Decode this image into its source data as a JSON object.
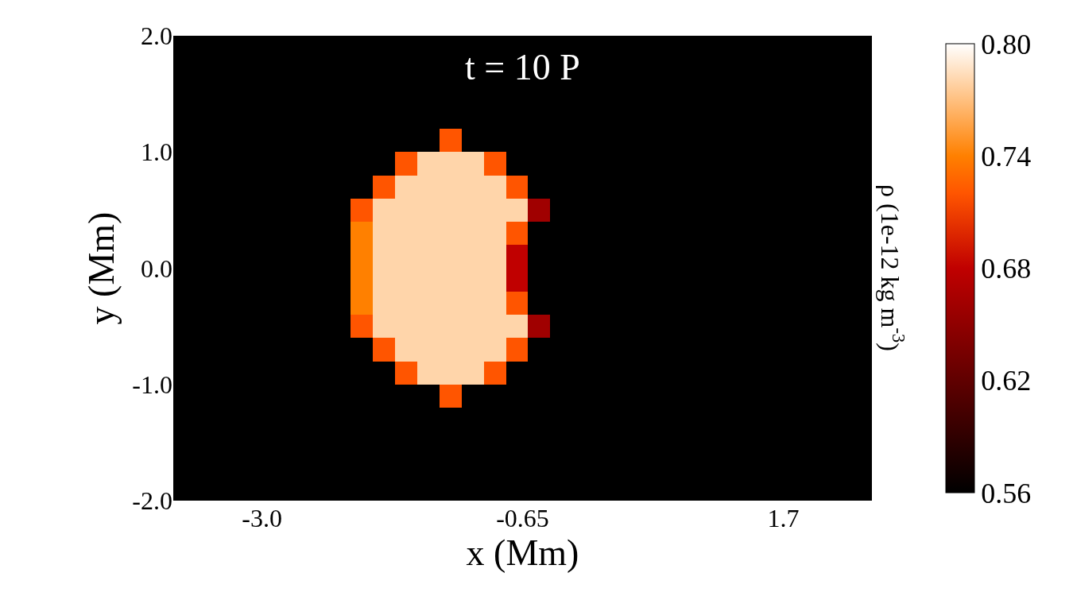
{
  "chart_data": {
    "type": "heatmap",
    "title": "t = 10 P",
    "xlabel": "x (Mm)",
    "ylabel": "y (Mm)",
    "clabel": "ρ (1e-12 kg m$^{-3}$)",
    "x": [
      -3.7,
      -3.5,
      -3.3,
      -3.1,
      -2.9,
      -2.7,
      -2.5,
      -2.3,
      -2.1,
      -1.9,
      -1.7,
      -1.5,
      -1.3,
      -1.1,
      -0.9,
      -0.7,
      -0.5,
      -0.3,
      -0.1,
      0.1,
      0.3,
      0.5,
      0.7,
      0.9,
      1.1,
      1.3,
      1.5,
      1.7,
      1.9,
      2.1,
      2.3
    ],
    "y": [
      1.9,
      1.7,
      1.5,
      1.3,
      1.1,
      0.9,
      0.7,
      0.5,
      0.3,
      0.1,
      -0.1,
      -0.3,
      -0.5,
      -0.7,
      -0.9,
      -1.1,
      -1.3,
      -1.5,
      -1.7,
      -1.9
    ],
    "cells": [
      [
        0.56,
        0.56,
        0.56,
        0.56,
        0.56,
        0.56,
        0.56,
        0.56,
        0.56,
        0.56,
        0.56,
        0.56,
        0.56,
        0.56,
        0.56,
        0.56,
        0.56,
        0.56,
        0.56,
        0.56,
        0.56,
        0.56,
        0.56,
        0.56,
        0.56,
        0.56,
        0.56,
        0.56,
        0.56,
        0.56,
        0.56
      ],
      [
        0.56,
        0.56,
        0.56,
        0.56,
        0.56,
        0.56,
        0.56,
        0.56,
        0.56,
        0.56,
        0.56,
        0.56,
        0.56,
        0.56,
        0.56,
        0.56,
        0.56,
        0.56,
        0.56,
        0.56,
        0.56,
        0.56,
        0.56,
        0.56,
        0.56,
        0.56,
        0.56,
        0.56,
        0.56,
        0.56,
        0.56
      ],
      [
        0.56,
        0.56,
        0.56,
        0.56,
        0.56,
        0.56,
        0.56,
        0.56,
        0.56,
        0.56,
        0.56,
        0.56,
        0.56,
        0.56,
        0.56,
        0.56,
        0.56,
        0.56,
        0.56,
        0.56,
        0.56,
        0.56,
        0.56,
        0.56,
        0.56,
        0.56,
        0.56,
        0.56,
        0.56,
        0.56,
        0.56
      ],
      [
        0.56,
        0.56,
        0.56,
        0.56,
        0.56,
        0.56,
        0.56,
        0.56,
        0.56,
        0.56,
        0.56,
        0.56,
        0.56,
        0.56,
        0.56,
        0.56,
        0.56,
        0.56,
        0.56,
        0.56,
        0.56,
        0.56,
        0.56,
        0.56,
        0.56,
        0.56,
        0.56,
        0.56,
        0.56,
        0.56,
        0.56
      ],
      [
        0.56,
        0.56,
        0.56,
        0.56,
        0.56,
        0.56,
        0.56,
        0.56,
        0.56,
        0.56,
        0.56,
        0.56,
        0.72,
        0.56,
        0.56,
        0.56,
        0.56,
        0.56,
        0.56,
        0.56,
        0.56,
        0.56,
        0.56,
        0.56,
        0.56,
        0.56,
        0.56,
        0.56,
        0.56,
        0.56,
        0.56
      ],
      [
        0.56,
        0.56,
        0.56,
        0.56,
        0.56,
        0.56,
        0.56,
        0.56,
        0.56,
        0.56,
        0.72,
        0.78,
        0.78,
        0.78,
        0.72,
        0.56,
        0.56,
        0.56,
        0.56,
        0.56,
        0.56,
        0.56,
        0.56,
        0.56,
        0.56,
        0.56,
        0.56,
        0.56,
        0.56,
        0.56,
        0.56
      ],
      [
        0.56,
        0.56,
        0.56,
        0.56,
        0.56,
        0.56,
        0.56,
        0.56,
        0.56,
        0.72,
        0.78,
        0.78,
        0.78,
        0.78,
        0.78,
        0.72,
        0.56,
        0.56,
        0.56,
        0.56,
        0.56,
        0.56,
        0.56,
        0.56,
        0.56,
        0.56,
        0.56,
        0.56,
        0.56,
        0.56,
        0.56
      ],
      [
        0.56,
        0.56,
        0.56,
        0.56,
        0.56,
        0.56,
        0.56,
        0.56,
        0.72,
        0.78,
        0.78,
        0.78,
        0.78,
        0.78,
        0.78,
        0.78,
        0.66,
        0.56,
        0.56,
        0.56,
        0.56,
        0.56,
        0.56,
        0.56,
        0.56,
        0.56,
        0.56,
        0.56,
        0.56,
        0.56,
        0.56
      ],
      [
        0.56,
        0.56,
        0.56,
        0.56,
        0.56,
        0.56,
        0.56,
        0.56,
        0.74,
        0.78,
        0.78,
        0.78,
        0.78,
        0.78,
        0.78,
        0.72,
        0.56,
        0.56,
        0.56,
        0.56,
        0.56,
        0.56,
        0.56,
        0.56,
        0.56,
        0.56,
        0.56,
        0.56,
        0.56,
        0.56,
        0.56
      ],
      [
        0.56,
        0.56,
        0.56,
        0.56,
        0.56,
        0.56,
        0.56,
        0.56,
        0.74,
        0.78,
        0.78,
        0.78,
        0.78,
        0.78,
        0.78,
        0.68,
        0.56,
        0.56,
        0.56,
        0.56,
        0.56,
        0.56,
        0.56,
        0.56,
        0.56,
        0.56,
        0.56,
        0.56,
        0.56,
        0.56,
        0.56
      ],
      [
        0.56,
        0.56,
        0.56,
        0.56,
        0.56,
        0.56,
        0.56,
        0.56,
        0.74,
        0.78,
        0.78,
        0.78,
        0.78,
        0.78,
        0.78,
        0.68,
        0.56,
        0.56,
        0.56,
        0.56,
        0.56,
        0.56,
        0.56,
        0.56,
        0.56,
        0.56,
        0.56,
        0.56,
        0.56,
        0.56,
        0.56
      ],
      [
        0.56,
        0.56,
        0.56,
        0.56,
        0.56,
        0.56,
        0.56,
        0.56,
        0.74,
        0.78,
        0.78,
        0.78,
        0.78,
        0.78,
        0.78,
        0.72,
        0.56,
        0.56,
        0.56,
        0.56,
        0.56,
        0.56,
        0.56,
        0.56,
        0.56,
        0.56,
        0.56,
        0.56,
        0.56,
        0.56,
        0.56
      ],
      [
        0.56,
        0.56,
        0.56,
        0.56,
        0.56,
        0.56,
        0.56,
        0.56,
        0.72,
        0.78,
        0.78,
        0.78,
        0.78,
        0.78,
        0.78,
        0.78,
        0.66,
        0.56,
        0.56,
        0.56,
        0.56,
        0.56,
        0.56,
        0.56,
        0.56,
        0.56,
        0.56,
        0.56,
        0.56,
        0.56,
        0.56
      ],
      [
        0.56,
        0.56,
        0.56,
        0.56,
        0.56,
        0.56,
        0.56,
        0.56,
        0.56,
        0.72,
        0.78,
        0.78,
        0.78,
        0.78,
        0.78,
        0.72,
        0.56,
        0.56,
        0.56,
        0.56,
        0.56,
        0.56,
        0.56,
        0.56,
        0.56,
        0.56,
        0.56,
        0.56,
        0.56,
        0.56,
        0.56
      ],
      [
        0.56,
        0.56,
        0.56,
        0.56,
        0.56,
        0.56,
        0.56,
        0.56,
        0.56,
        0.56,
        0.72,
        0.78,
        0.78,
        0.78,
        0.72,
        0.56,
        0.56,
        0.56,
        0.56,
        0.56,
        0.56,
        0.56,
        0.56,
        0.56,
        0.56,
        0.56,
        0.56,
        0.56,
        0.56,
        0.56,
        0.56
      ],
      [
        0.56,
        0.56,
        0.56,
        0.56,
        0.56,
        0.56,
        0.56,
        0.56,
        0.56,
        0.56,
        0.56,
        0.56,
        0.72,
        0.56,
        0.56,
        0.56,
        0.56,
        0.56,
        0.56,
        0.56,
        0.56,
        0.56,
        0.56,
        0.56,
        0.56,
        0.56,
        0.56,
        0.56,
        0.56,
        0.56,
        0.56
      ],
      [
        0.56,
        0.56,
        0.56,
        0.56,
        0.56,
        0.56,
        0.56,
        0.56,
        0.56,
        0.56,
        0.56,
        0.56,
        0.56,
        0.56,
        0.56,
        0.56,
        0.56,
        0.56,
        0.56,
        0.56,
        0.56,
        0.56,
        0.56,
        0.56,
        0.56,
        0.56,
        0.56,
        0.56,
        0.56,
        0.56,
        0.56
      ],
      [
        0.56,
        0.56,
        0.56,
        0.56,
        0.56,
        0.56,
        0.56,
        0.56,
        0.56,
        0.56,
        0.56,
        0.56,
        0.56,
        0.56,
        0.56,
        0.56,
        0.56,
        0.56,
        0.56,
        0.56,
        0.56,
        0.56,
        0.56,
        0.56,
        0.56,
        0.56,
        0.56,
        0.56,
        0.56,
        0.56,
        0.56
      ],
      [
        0.56,
        0.56,
        0.56,
        0.56,
        0.56,
        0.56,
        0.56,
        0.56,
        0.56,
        0.56,
        0.56,
        0.56,
        0.56,
        0.56,
        0.56,
        0.56,
        0.56,
        0.56,
        0.56,
        0.56,
        0.56,
        0.56,
        0.56,
        0.56,
        0.56,
        0.56,
        0.56,
        0.56,
        0.56,
        0.56,
        0.56
      ],
      [
        0.56,
        0.56,
        0.56,
        0.56,
        0.56,
        0.56,
        0.56,
        0.56,
        0.56,
        0.56,
        0.56,
        0.56,
        0.56,
        0.56,
        0.56,
        0.56,
        0.56,
        0.56,
        0.56,
        0.56,
        0.56,
        0.56,
        0.56,
        0.56,
        0.56,
        0.56,
        0.56,
        0.56,
        0.56,
        0.56,
        0.56
      ]
    ],
    "xlim": [
      -3.8,
      2.5
    ],
    "ylim": [
      -2.0,
      2.0
    ],
    "xticks": [
      {
        "value": -3.0,
        "label": "-3.0"
      },
      {
        "value": -0.65,
        "label": "-0.65"
      },
      {
        "value": 1.7,
        "label": "1.7"
      }
    ],
    "yticks": [
      {
        "value": -2.0,
        "label": "-2.0"
      },
      {
        "value": -1.0,
        "label": "-1.0"
      },
      {
        "value": 0.0,
        "label": "0.0"
      },
      {
        "value": 1.0,
        "label": "1.0"
      },
      {
        "value": 2.0,
        "label": "2.0"
      }
    ],
    "clim": [
      0.56,
      0.8
    ],
    "cticks": [
      {
        "value": 0.56,
        "label": "0.56"
      },
      {
        "value": 0.62,
        "label": "0.62"
      },
      {
        "value": 0.68,
        "label": "0.68"
      },
      {
        "value": 0.74,
        "label": "0.74"
      },
      {
        "value": 0.8,
        "label": "0.80"
      }
    ],
    "grid": false
  }
}
